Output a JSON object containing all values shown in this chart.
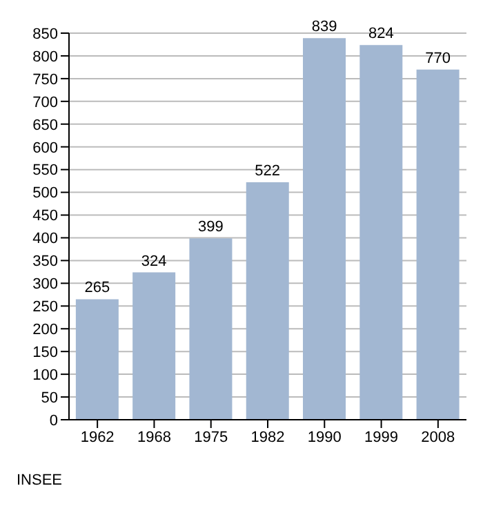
{
  "chart_data": {
    "type": "bar",
    "categories": [
      "1962",
      "1968",
      "1975",
      "1982",
      "1990",
      "1999",
      "2008"
    ],
    "values": [
      265,
      324,
      399,
      522,
      839,
      824,
      770
    ],
    "color": "#a2b7d2",
    "data_labels": true,
    "ylim": [
      0,
      850
    ],
    "yticks": [
      0,
      50,
      100,
      150,
      200,
      250,
      300,
      350,
      400,
      450,
      500,
      550,
      600,
      650,
      700,
      750,
      800,
      850
    ],
    "grid": "y",
    "annotations": [
      "INSEE"
    ]
  }
}
